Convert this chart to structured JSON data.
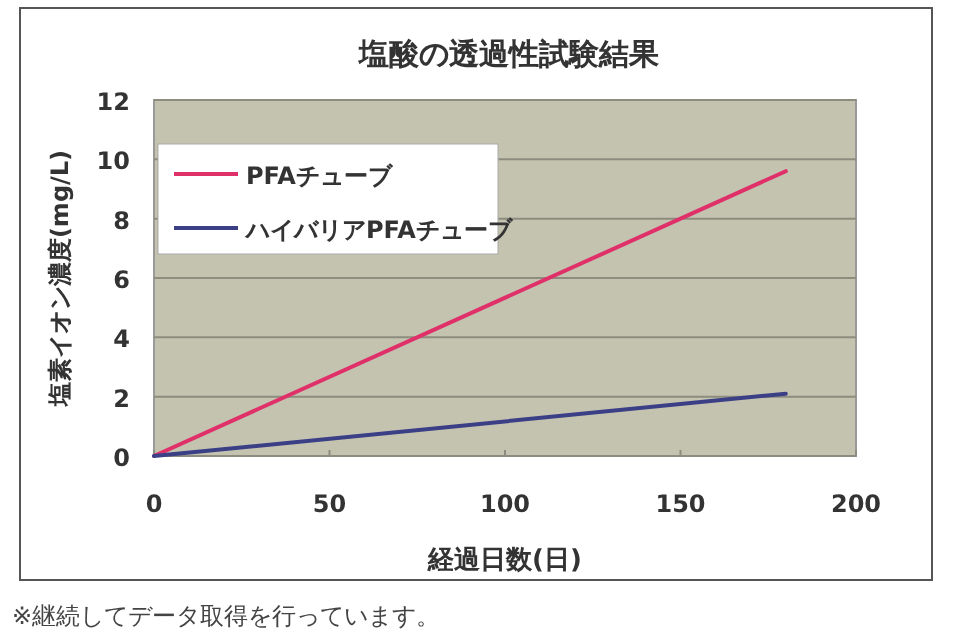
{
  "chart_data": {
    "type": "line",
    "title": "塩酸の透過性試験結果",
    "xlabel": "経過日数(日)",
    "ylabel": "塩素イオン濃度(mg/L)",
    "annotations": [
      "※継続してデータ取得を行っています。"
    ],
    "x": [
      0,
      180
    ],
    "series": [
      {
        "name": "PFAチューブ",
        "color": "#e0306a",
        "values": [
          0,
          9.6
        ]
      },
      {
        "name": "ハイバリアPFAチューブ",
        "color": "#3a3f86",
        "values": [
          0,
          2.1
        ]
      }
    ],
    "xlim": [
      0,
      200
    ],
    "xticks": [
      0,
      50,
      100,
      150,
      200
    ],
    "ylim": [
      0,
      12
    ],
    "yticks": [
      0,
      2,
      4,
      6,
      8,
      10,
      12
    ],
    "grid": "y",
    "legend": "top left"
  }
}
